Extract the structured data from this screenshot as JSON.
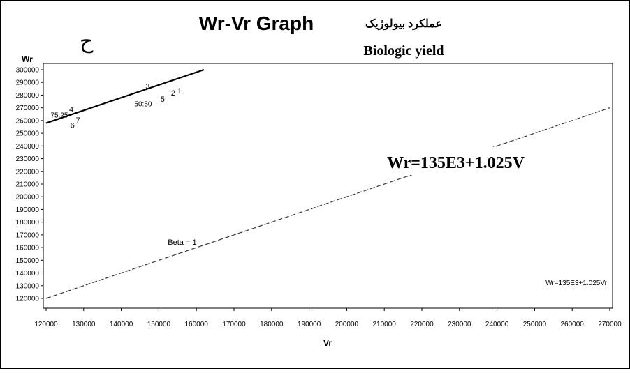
{
  "panel_letter": "ح",
  "title": "Wr-Vr Graph",
  "subtitle_fa": "عملکرد بیولوژیک",
  "subtitle_en": "Biologic yield",
  "equation_big": "Wr=135E3+1.025V",
  "chart_data": {
    "type": "scatter",
    "xlabel": "Vr",
    "ylabel": "Wr",
    "xlim": [
      120000,
      270000
    ],
    "ylim": [
      120000,
      300000
    ],
    "x_ticks": [
      120000,
      130000,
      140000,
      150000,
      160000,
      170000,
      180000,
      190000,
      200000,
      210000,
      220000,
      230000,
      240000,
      250000,
      260000,
      270000
    ],
    "y_ticks": [
      120000,
      130000,
      140000,
      150000,
      160000,
      170000,
      180000,
      190000,
      200000,
      210000,
      220000,
      230000,
      240000,
      250000,
      260000,
      270000,
      280000,
      290000,
      300000
    ],
    "points": [
      {
        "label": "1",
        "x": 155500,
        "y": 283500
      },
      {
        "label": "2",
        "x": 153800,
        "y": 282000
      },
      {
        "label": "3",
        "x": 147000,
        "y": 287000
      },
      {
        "label": "4",
        "x": 126700,
        "y": 269000
      },
      {
        "label": "5",
        "x": 151000,
        "y": 277000
      },
      {
        "label": "6",
        "x": 127000,
        "y": 256500
      },
      {
        "label": "7",
        "x": 128500,
        "y": 260500
      }
    ],
    "annotations": [
      {
        "text": "75:25",
        "x": 121200,
        "y": 264500
      },
      {
        "text": "50:50",
        "x": 143500,
        "y": 273500
      }
    ],
    "regression_line": {
      "x": [
        120000,
        162000
      ],
      "y": [
        258000,
        300000
      ]
    },
    "beta_line": {
      "label": "Beta = 1",
      "x": [
        120000,
        270000
      ],
      "y": [
        120000,
        270000
      ]
    },
    "beta_label_pos": {
      "x": 155000,
      "y": 160000
    },
    "equation_legend": "Wr=135E3+1.025Vr"
  }
}
